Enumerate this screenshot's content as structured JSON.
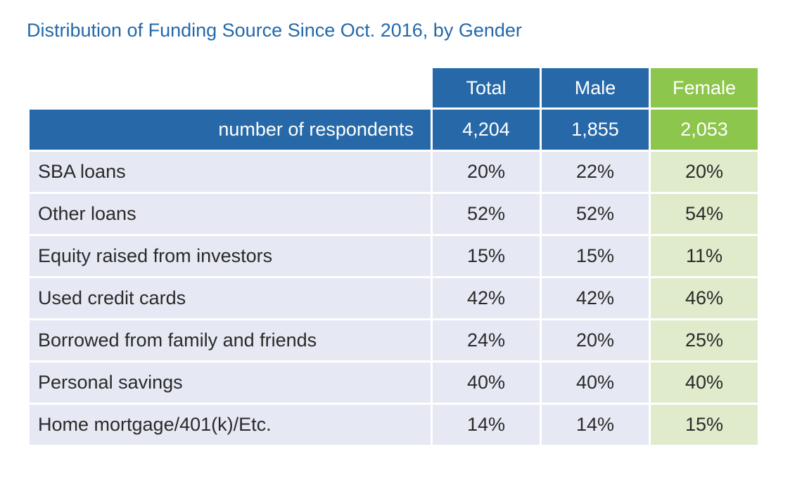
{
  "title": "Distribution of Funding Source Since Oct. 2016, by Gender",
  "colors": {
    "title": "#2369ab",
    "header_blue": "#2769a8",
    "header_green": "#8dc64c",
    "cell_blue": "#e6e8f3",
    "cell_green": "#dfebcb"
  },
  "table": {
    "columns": [
      "Total",
      "Male",
      "Female"
    ],
    "respondents": {
      "label": "number of respondents",
      "values": [
        "4,204",
        "1,855",
        "2,053"
      ]
    },
    "rows": [
      {
        "label": "SBA loans",
        "values": [
          "20%",
          "22%",
          "20%"
        ]
      },
      {
        "label": "Other loans",
        "values": [
          "52%",
          "52%",
          "54%"
        ]
      },
      {
        "label": "Equity raised from investors",
        "values": [
          "15%",
          "15%",
          "11%"
        ]
      },
      {
        "label": "Used credit cards",
        "values": [
          "42%",
          "42%",
          "46%"
        ]
      },
      {
        "label": "Borrowed from family and friends",
        "values": [
          "24%",
          "20%",
          "25%"
        ]
      },
      {
        "label": "Personal savings",
        "values": [
          "40%",
          "40%",
          "40%"
        ]
      },
      {
        "label": "Home mortgage/401(k)/Etc.",
        "values": [
          "14%",
          "14%",
          "15%"
        ]
      }
    ]
  }
}
